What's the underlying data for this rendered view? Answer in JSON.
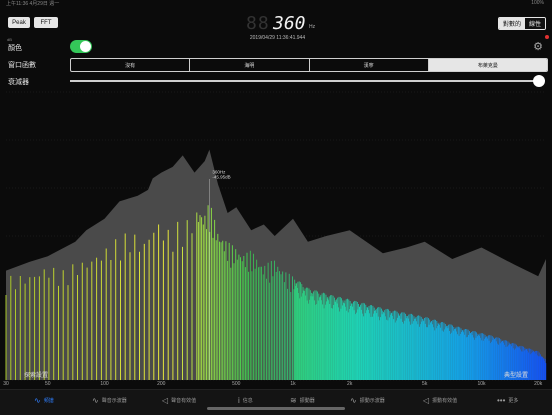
{
  "status": {
    "left": "上午11:36  4月29日 週一",
    "right": "100%"
  },
  "header": {
    "mode_buttons": [
      "Peak",
      "FFT"
    ],
    "freq_ghost": "88",
    "freq_value": "360",
    "freq_unit": "Hz",
    "timestamp": "2019/04/29 11:36:41.944",
    "scale_toggle": [
      "對數的",
      "線性"
    ]
  },
  "settings": {
    "db_label": "dB",
    "color_label": "顏色",
    "color_on": true,
    "window_label": "窗口函數",
    "window_options": [
      "沒有",
      "海明",
      "漢寧",
      "布萊克曼"
    ],
    "window_selected": 3,
    "attenuator_label": "衰減器",
    "attenuator_level": 1.0
  },
  "chart_data": {
    "type": "bar",
    "x_scale": "log",
    "xlim": [
      30,
      22000
    ],
    "x_ticks": [
      "30",
      "50",
      "100",
      "200",
      "500",
      "1k",
      "2k",
      "5k",
      "10k",
      "20k"
    ],
    "peak_label": {
      "freq": "360Hz",
      "level": "-45.95dB"
    },
    "envelope": [
      [
        30,
        38
      ],
      [
        40,
        41
      ],
      [
        50,
        43
      ],
      [
        70,
        48
      ],
      [
        80,
        52
      ],
      [
        100,
        56
      ],
      [
        120,
        62
      ],
      [
        150,
        64
      ],
      [
        170,
        66
      ],
      [
        180,
        70
      ],
      [
        200,
        72
      ],
      [
        230,
        74
      ],
      [
        260,
        78
      ],
      [
        300,
        72
      ],
      [
        340,
        76
      ],
      [
        360,
        80
      ],
      [
        400,
        68
      ],
      [
        450,
        58
      ],
      [
        500,
        60
      ],
      [
        600,
        52
      ],
      [
        700,
        54
      ],
      [
        800,
        50
      ],
      [
        1000,
        56
      ],
      [
        1200,
        48
      ],
      [
        1500,
        50
      ],
      [
        2000,
        52
      ],
      [
        3000,
        44
      ],
      [
        4000,
        46
      ],
      [
        5000,
        48
      ],
      [
        7000,
        42
      ],
      [
        10000,
        46
      ],
      [
        15000,
        40
      ],
      [
        20000,
        36
      ],
      [
        22000,
        42
      ]
    ],
    "spectrum": [
      [
        30,
        36
      ],
      [
        40,
        37
      ],
      [
        50,
        40
      ],
      [
        60,
        38
      ],
      [
        70,
        41
      ],
      [
        80,
        42
      ],
      [
        100,
        46
      ],
      [
        120,
        50
      ],
      [
        140,
        52
      ],
      [
        150,
        50
      ],
      [
        160,
        48
      ],
      [
        180,
        54
      ],
      [
        190,
        56
      ],
      [
        200,
        55
      ],
      [
        210,
        53
      ],
      [
        230,
        52
      ],
      [
        250,
        56
      ],
      [
        270,
        55
      ],
      [
        290,
        58
      ],
      [
        320,
        60
      ],
      [
        340,
        58
      ],
      [
        360,
        62
      ],
      [
        380,
        57
      ],
      [
        400,
        52
      ],
      [
        450,
        48
      ],
      [
        500,
        46
      ],
      [
        550,
        44
      ],
      [
        600,
        45
      ],
      [
        700,
        40
      ],
      [
        800,
        42
      ],
      [
        900,
        38
      ],
      [
        1000,
        36
      ],
      [
        1200,
        32
      ],
      [
        1500,
        30
      ],
      [
        2000,
        28
      ],
      [
        3000,
        25
      ],
      [
        5000,
        22
      ],
      [
        8000,
        18
      ],
      [
        12000,
        15
      ],
      [
        16000,
        12
      ],
      [
        20000,
        10
      ],
      [
        22000,
        7
      ]
    ]
  },
  "corner_buttons": {
    "left": "探索設置",
    "right": "典型設置"
  },
  "tabs": [
    {
      "label": "頻譜",
      "icon": "spectrum-icon",
      "glyph": "∿"
    },
    {
      "label": "聲音示波器",
      "icon": "waveform-icon",
      "glyph": "∿"
    },
    {
      "label": "聲音有效值",
      "icon": "speaker-icon",
      "glyph": "◁"
    },
    {
      "label": "信息",
      "icon": "info-icon",
      "glyph": "i"
    },
    {
      "label": "振動器",
      "icon": "vibration-icon",
      "glyph": "≋"
    },
    {
      "label": "振動示波器",
      "icon": "vibration-wave-icon",
      "glyph": "∿"
    },
    {
      "label": "振動有效值",
      "icon": "vibration-speaker-icon",
      "glyph": "◁"
    },
    {
      "label": "更多",
      "icon": "more-icon",
      "glyph": "•••"
    }
  ],
  "active_tab": 0
}
